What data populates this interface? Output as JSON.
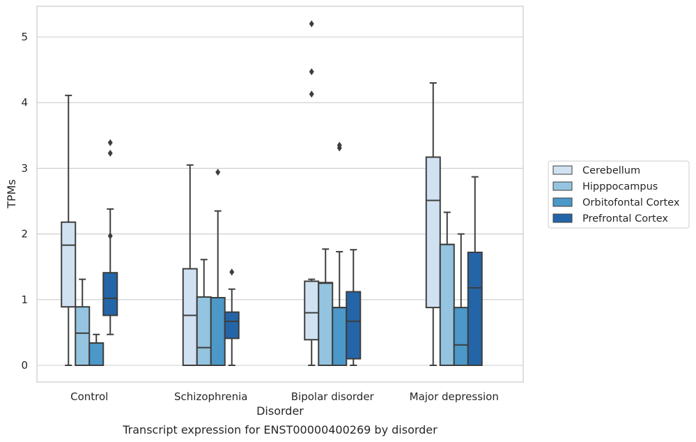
{
  "chart_data": {
    "type": "boxplot",
    "caption": "Transcript expression for ENST00000400269 by disorder",
    "xlabel": "Disorder",
    "ylabel": "TPMs",
    "ylim": [
      -0.25,
      5.5
    ],
    "yticks": [
      0,
      1,
      2,
      3,
      4,
      5
    ],
    "grid": "horizontal",
    "legend_position": "right",
    "categories": [
      "Control",
      "Schizophrenia",
      "Bipolar disorder",
      "Major depression"
    ],
    "series": [
      {
        "name": "Cerebellum",
        "color": "#d0e1f2",
        "boxes": [
          {
            "whislo": 0,
            "q1": 0.89,
            "median": 1.83,
            "q3": 2.18,
            "whishi": 4.11,
            "fliers": []
          },
          {
            "whislo": 0,
            "q1": 0,
            "median": 0.76,
            "q3": 1.47,
            "whishi": 3.05,
            "fliers": []
          },
          {
            "whislo": 0,
            "q1": 0.39,
            "median": 0.8,
            "q3": 1.28,
            "whishi": 1.31,
            "fliers": [
              4.13,
              4.47,
              5.2
            ]
          },
          {
            "whislo": 0,
            "q1": 0.88,
            "median": 2.51,
            "q3": 3.17,
            "whishi": 4.3,
            "fliers": []
          }
        ]
      },
      {
        "name": "Hipppocampus",
        "color": "#94c4df",
        "boxes": [
          {
            "whislo": 0,
            "q1": 0,
            "median": 0.49,
            "q3": 0.89,
            "whishi": 1.31,
            "fliers": []
          },
          {
            "whislo": 0,
            "q1": 0,
            "median": 0.27,
            "q3": 1.04,
            "whishi": 1.61,
            "fliers": []
          },
          {
            "whislo": 0,
            "q1": 0,
            "median": 1.25,
            "q3": 1.26,
            "whishi": 1.77,
            "fliers": []
          },
          {
            "whislo": 0,
            "q1": 0,
            "median": 1.84,
            "q3": 1.84,
            "whishi": 2.33,
            "fliers": []
          }
        ]
      },
      {
        "name": "Orbitofontal Cortex",
        "color": "#4b98c9",
        "boxes": [
          {
            "whislo": 0,
            "q1": 0,
            "median": 0.34,
            "q3": 0.34,
            "whishi": 0.47,
            "fliers": []
          },
          {
            "whislo": 0,
            "q1": 0,
            "median": 1.03,
            "q3": 1.03,
            "whishi": 2.35,
            "fliers": [
              2.94
            ]
          },
          {
            "whislo": 0,
            "q1": 0,
            "median": 0.88,
            "q3": 0.88,
            "whishi": 1.73,
            "fliers": [
              3.31,
              3.35
            ]
          },
          {
            "whislo": 0,
            "q1": 0,
            "median": 0.31,
            "q3": 0.88,
            "whishi": 2.0,
            "fliers": []
          }
        ]
      },
      {
        "name": "Prefrontal Cortex",
        "color": "#2465a8",
        "boxes": [
          {
            "whislo": 0.47,
            "q1": 0.76,
            "median": 1.02,
            "q3": 1.41,
            "whishi": 2.38,
            "fliers": [
              1.97,
              3.23,
              3.39
            ]
          },
          {
            "whislo": 0,
            "q1": 0.41,
            "median": 0.67,
            "q3": 0.81,
            "whishi": 1.16,
            "fliers": [
              1.42
            ]
          },
          {
            "whislo": 0,
            "q1": 0.1,
            "median": 0.67,
            "q3": 1.12,
            "whishi": 1.76,
            "fliers": []
          },
          {
            "whislo": 0,
            "q1": 0,
            "median": 1.18,
            "q3": 1.72,
            "whishi": 2.87,
            "fliers": []
          }
        ]
      }
    ]
  }
}
